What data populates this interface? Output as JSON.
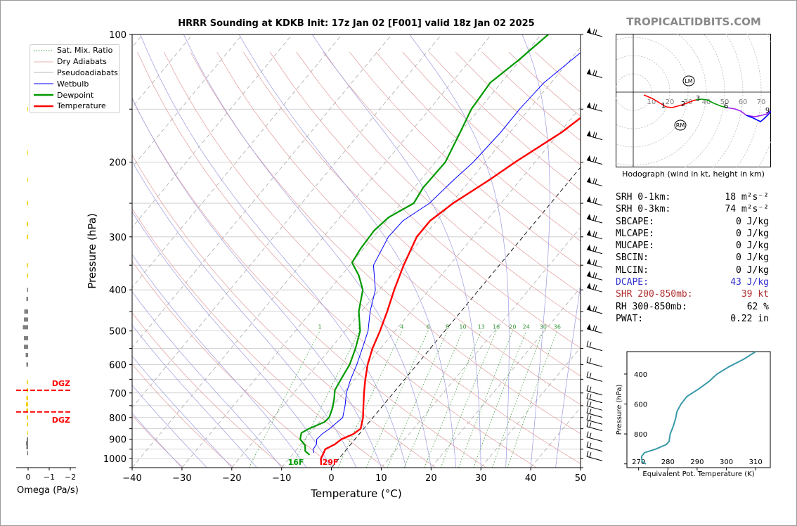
{
  "title": "HRRR Sounding at KDKB Init: 17z Jan 02 [F001] valid 18z Jan 02 2025",
  "brand": "TROPICALTIDBITS.COM",
  "skewt": {
    "xlabel": "Temperature (°C)",
    "ylabel": "Pressure (hPa)",
    "x_ticks": [
      -40,
      -30,
      -20,
      -10,
      0,
      10,
      20,
      30,
      40,
      50
    ],
    "y_ticks": [
      100,
      200,
      300,
      400,
      500,
      600,
      700,
      800,
      900,
      1000
    ],
    "xlim": [
      -40,
      50
    ],
    "ylim": [
      100,
      1050
    ],
    "legend": [
      "Sat. Mix. Ratio",
      "Dry Adiabats",
      "Pseudoadiabats",
      "Wetbulb",
      "Dewpoint",
      "Temperature"
    ],
    "mixing_ratio_labels": [
      "1",
      "2",
      "4",
      "6",
      "8",
      "10",
      "13",
      "16",
      "20",
      "24",
      "30",
      "36"
    ],
    "surface_dewpoint_label": "16F",
    "surface_temp_label": "29F",
    "colors": {
      "temperature": "#ff0000",
      "dewpoint": "#009a00",
      "wetbulb": "#0000ff"
    }
  },
  "chart_data": [
    {
      "type": "line",
      "title": "HRRR Sounding at KDKB Init: 17z Jan 02 [F001] valid 18z Jan 02 2025",
      "xlabel": "Temperature (°C)",
      "ylabel": "Pressure (hPa)",
      "log_y": true,
      "skewed": true,
      "series": [
        {
          "name": "Temperature",
          "points": [
            [
              1035,
              -2.5
            ],
            [
              1000,
              -3.6
            ],
            [
              970,
              -4.0
            ],
            [
              950,
              -4.3
            ],
            [
              925,
              -3.2
            ],
            [
              900,
              -2.7
            ],
            [
              875,
              -1.2
            ],
            [
              850,
              -0.6
            ],
            [
              800,
              -2.0
            ],
            [
              750,
              -3.9
            ],
            [
              700,
              -5.9
            ],
            [
              650,
              -7.9
            ],
            [
              600,
              -9.9
            ],
            [
              550,
              -11.6
            ],
            [
              500,
              -13.0
            ],
            [
              450,
              -14.8
            ],
            [
              400,
              -17.0
            ],
            [
              350,
              -19.2
            ],
            [
              300,
              -21.3
            ],
            [
              275,
              -21.3
            ],
            [
              250,
              -19.6
            ],
            [
              220,
              -16.2
            ],
            [
              200,
              -14.0
            ],
            [
              170,
              -9.6
            ],
            [
              150,
              -7.4
            ],
            [
              130,
              -5.3
            ],
            [
              110,
              -3.0
            ],
            [
              100,
              -2.1
            ]
          ]
        },
        {
          "name": "Dewpoint",
          "points": [
            [
              980,
              -6.5
            ],
            [
              960,
              -8.0
            ],
            [
              930,
              -9.0
            ],
            [
              900,
              -11.0
            ],
            [
              870,
              -11.8
            ],
            [
              850,
              -11.0
            ],
            [
              820,
              -9.0
            ],
            [
              800,
              -8.8
            ],
            [
              760,
              -9.7
            ],
            [
              720,
              -11.0
            ],
            [
              690,
              -12.2
            ],
            [
              650,
              -12.8
            ],
            [
              600,
              -13.5
            ],
            [
              550,
              -15.0
            ],
            [
              500,
              -17.0
            ],
            [
              450,
              -20.5
            ],
            [
              400,
              -23.3
            ],
            [
              370,
              -26.5
            ],
            [
              345,
              -30.0
            ],
            [
              320,
              -30.6
            ],
            [
              290,
              -30.9
            ],
            [
              270,
              -30.2
            ],
            [
              250,
              -27.5
            ],
            [
              230,
              -28.2
            ],
            [
              200,
              -28.0
            ],
            [
              170,
              -30.0
            ],
            [
              150,
              -31.6
            ],
            [
              130,
              -32.2
            ],
            [
              115,
              -30.3
            ],
            [
              100,
              -28.6
            ]
          ]
        }
      ],
      "annotations": [
        "16F",
        "29F"
      ]
    },
    {
      "type": "line",
      "title": "Hodograph (wind in kt, height in km)",
      "x_ring_labels": [
        "10",
        "20",
        "30",
        "40",
        "50",
        "60",
        "70"
      ],
      "height_labels": [
        "1",
        "2",
        "3",
        "6",
        "9"
      ],
      "storm_motion_labels": [
        "LM",
        "RM"
      ]
    },
    {
      "type": "line",
      "xlabel": "Equivalent Pot. Temperature (K)",
      "ylabel": "Pressure (hPa)",
      "x_ticks": [
        270,
        280,
        290,
        300,
        310
      ],
      "y_ticks": [
        400,
        600,
        800
      ],
      "xlim": [
        266,
        315
      ],
      "series": [
        {
          "name": "",
          "points": [
            [
              1000,
              272.5
            ],
            [
              985,
              271.2
            ],
            [
              950,
              271.0
            ],
            [
              925,
              272.0
            ],
            [
              900,
              276.0
            ],
            [
              870,
              279.5
            ],
            [
              850,
              280.4
            ],
            [
              800,
              280.8
            ],
            [
              750,
              281.8
            ],
            [
              700,
              282.6
            ],
            [
              650,
              283.1
            ],
            [
              600,
              284.5
            ],
            [
              550,
              286.5
            ],
            [
              500,
              290.5
            ],
            [
              450,
              294.0
            ],
            [
              400,
              296.8
            ],
            [
              350,
              301.0
            ],
            [
              300,
              306.0
            ],
            [
              250,
              310.0
            ]
          ]
        }
      ]
    },
    {
      "type": "bar",
      "xlabel": "Omega (Pa/s)",
      "x_ticks": [
        "0",
        "−1",
        "−2"
      ],
      "dgz_label": "DGZ",
      "orientation": "horizontal",
      "series": [
        {
          "name": "",
          "points": [
            [
              150,
              -0.2
            ],
            [
              190,
              -0.2
            ],
            [
              220,
              -0.2
            ],
            [
              250,
              -0.3
            ],
            [
              280,
              -0.4
            ],
            [
              300,
              -0.4
            ],
            [
              350,
              -0.3
            ],
            [
              370,
              -0.3
            ],
            [
              400,
              -0.3
            ],
            [
              420,
              -0.5
            ],
            [
              450,
              -1.1
            ],
            [
              470,
              -1.2
            ],
            [
              490,
              -1.5
            ],
            [
              520,
              -1.2
            ],
            [
              545,
              -1.2
            ],
            [
              570,
              -0.7
            ],
            [
              600,
              -0.5
            ],
            [
              660,
              -0.3
            ],
            [
              690,
              -0.4
            ],
            [
              720,
              -0.5
            ],
            [
              745,
              -0.6
            ],
            [
              770,
              -0.5
            ],
            [
              800,
              -0.4
            ],
            [
              830,
              -0.3
            ],
            [
              870,
              -0.2
            ],
            [
              900,
              -0.4
            ],
            [
              920,
              -0.6
            ],
            [
              940,
              -0.5
            ],
            [
              970,
              -0.3
            ]
          ]
        }
      ]
    }
  ],
  "hodograph": {
    "caption": "Hodograph (wind in kt, height in km)",
    "ring_labels": [
      "10",
      "20",
      "30",
      "40",
      "50",
      "60",
      "70"
    ],
    "height_labels": [
      "1",
      "2",
      "3",
      "6",
      "9"
    ],
    "lm_label": "LM",
    "rm_label": "RM"
  },
  "params": [
    {
      "label": "SRH 0-1km:",
      "value": "18 m²s⁻²",
      "color": "black"
    },
    {
      "label": "SRH 0-3km:",
      "value": "74 m²s⁻²",
      "color": "black"
    },
    {
      "label": "SBCAPE:",
      "value": "0 J/kg",
      "color": "black"
    },
    {
      "label": "MLCAPE:",
      "value": "0 J/kg",
      "color": "black"
    },
    {
      "label": "MUCAPE:",
      "value": "0 J/kg",
      "color": "black"
    },
    {
      "label": "SBCIN:",
      "value": "0 J/kg",
      "color": "black"
    },
    {
      "label": "MLCIN:",
      "value": "0 J/kg",
      "color": "black"
    },
    {
      "label": "DCAPE:",
      "value": "43 J/kg",
      "color": "blue"
    },
    {
      "label": "SHR 200-850mb:",
      "value": "39 kt",
      "color": "brown"
    },
    {
      "label": "RH 300-850mb:",
      "value": "62 %",
      "color": "black"
    },
    {
      "label": "PWAT:",
      "value": "0.22 in",
      "color": "black"
    }
  ],
  "theta_e": {
    "xlabel": "Equivalent Pot. Temperature (K)",
    "ylabel": "Pressure (hPa)"
  },
  "omega": {
    "xlabel": "Omega (Pa/s)",
    "dgz_label": "DGZ"
  }
}
